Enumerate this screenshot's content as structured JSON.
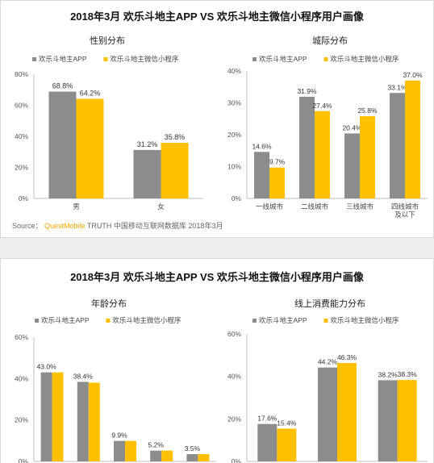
{
  "colors": {
    "app": "#8c8c8c",
    "mini": "#ffc000"
  },
  "sections": [
    {
      "title": "2018年3月 欢乐斗地主APP VS 欢乐斗地主微信小程序用户画像"
    },
    {
      "title": "2018年3月 欢乐斗地主APP VS 欢乐斗地主微信小程序用户画像"
    }
  ],
  "source": {
    "prefix": "Source：",
    "brand": "QuestMobile",
    "rest": "TRUTH 中国移动互联网数据库 2018年3月"
  },
  "chart_data": [
    {
      "type": "bar",
      "title": "性别分布",
      "categories": [
        "男",
        "女"
      ],
      "series": [
        {
          "name": "欢乐斗地主APP",
          "values": [
            68.8,
            31.2
          ]
        },
        {
          "name": "欢乐斗地主微信小程序",
          "values": [
            64.2,
            35.8
          ]
        }
      ],
      "value_labels": [
        [
          "68.8%",
          "31.2%"
        ],
        [
          "64.2%",
          "35.8%"
        ]
      ],
      "ylim": [
        0,
        80
      ],
      "yticks": [
        "0%",
        "20%",
        "40%",
        "60%",
        "80%"
      ],
      "legend": "top"
    },
    {
      "type": "bar",
      "title": "城际分布",
      "categories": [
        "一线城市",
        "二线城市",
        "三线城市",
        "四线城市\n及以下"
      ],
      "series": [
        {
          "name": "欢乐斗地主APP",
          "values": [
            14.6,
            31.9,
            20.4,
            33.1
          ]
        },
        {
          "name": "欢乐斗地主微信小程序",
          "values": [
            9.7,
            27.4,
            25.8,
            37.0
          ]
        }
      ],
      "value_labels": [
        [
          "14.6%",
          "31.9%",
          "20.4%",
          "33.1%"
        ],
        [
          "9.7%",
          "27.4%",
          "25.8%",
          "37.0%"
        ]
      ],
      "ylim": [
        0,
        40
      ],
      "yticks": [
        "0%",
        "10%",
        "20%",
        "30%",
        "40%"
      ],
      "legend": "top"
    },
    {
      "type": "bar",
      "title": "年龄分布",
      "categories": [
        "",
        "",
        "",
        "",
        ""
      ],
      "series": [
        {
          "name": "欢乐斗地主APP",
          "values": [
            43.0,
            38.4,
            9.9,
            5.2,
            3.5
          ]
        },
        {
          "name": "欢乐斗地主微信小程序",
          "values": [
            43.0,
            38.0,
            9.9,
            5.2,
            3.5
          ]
        }
      ],
      "value_labels": [
        [
          "43.0%",
          "38.4%",
          "9.9%",
          "5.2%",
          "3.5%"
        ],
        [
          "",
          "",
          "",
          "",
          ""
        ]
      ],
      "ylim": [
        0,
        60
      ],
      "yticks": [
        "0%",
        "20%",
        "40%",
        "60%"
      ],
      "legend": "top"
    },
    {
      "type": "bar",
      "title": "线上消费能力分布",
      "categories": [
        "",
        "",
        ""
      ],
      "series": [
        {
          "name": "欢乐斗地主APP",
          "values": [
            17.6,
            44.2,
            38.2
          ]
        },
        {
          "name": "欢乐斗地主微信小程序",
          "values": [
            15.4,
            46.3,
            38.3
          ]
        }
      ],
      "value_labels": [
        [
          "17.6%",
          "44.2%",
          "38.2%"
        ],
        [
          "15.4%",
          "46.3%",
          "38.3%"
        ]
      ],
      "ylim": [
        0,
        60
      ],
      "yticks": [
        "0%",
        "20%",
        "40%",
        "60%"
      ],
      "legend": "top"
    }
  ]
}
